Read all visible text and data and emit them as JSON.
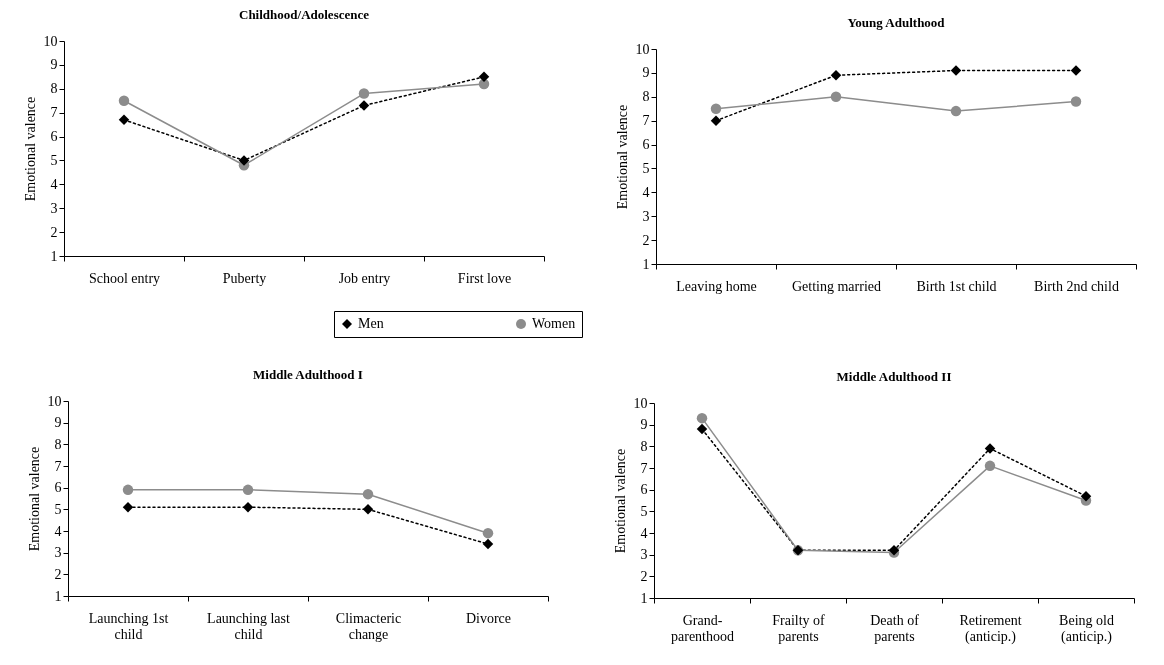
{
  "chart_data": [
    {
      "type": "line",
      "title": "Childhood/Adolescence",
      "ylabel": "Emotional valence",
      "categories": [
        "School entry",
        "Puberty",
        "Job entry",
        "First love"
      ],
      "ylim": [
        1,
        10
      ],
      "yticks": [
        1,
        2,
        3,
        4,
        5,
        6,
        7,
        8,
        9,
        10
      ],
      "legend": "bottom",
      "series": [
        {
          "name": "Men",
          "color": "#000000",
          "marker": "diamond",
          "line_style": "dotted",
          "values": [
            6.7,
            5.0,
            7.3,
            8.5
          ]
        },
        {
          "name": "Women",
          "color": "#8c8c8c",
          "marker": "circle",
          "line_style": "solid",
          "values": [
            7.5,
            4.8,
            7.8,
            8.2
          ]
        }
      ]
    },
    {
      "type": "line",
      "title": "Young Adulthood",
      "ylabel": "Emotional valence",
      "categories": [
        "Leaving home",
        "Getting married",
        "Birth 1st child",
        "Birth 2nd child"
      ],
      "ylim": [
        1,
        10
      ],
      "yticks": [
        1,
        2,
        3,
        4,
        5,
        6,
        7,
        8,
        9,
        10
      ],
      "series": [
        {
          "color": "#000000",
          "marker": "diamond",
          "line_style": "dotted",
          "values": [
            7.0,
            8.9,
            9.1,
            9.1
          ]
        },
        {
          "color": "#8c8c8c",
          "marker": "circle",
          "line_style": "solid",
          "values": [
            7.5,
            8.0,
            7.4,
            7.8
          ]
        }
      ]
    },
    {
      "type": "line",
      "title": "Middle Adulthood I",
      "ylabel": "Emotional valence",
      "categories": [
        "Launching 1st child",
        "Launching last child",
        "Climacteric change",
        "Divorce"
      ],
      "ylim": [
        1,
        10
      ],
      "yticks": [
        1,
        2,
        3,
        4,
        5,
        6,
        7,
        8,
        9,
        10
      ],
      "series": [
        {
          "color": "#000000",
          "marker": "diamond",
          "line_style": "dotted",
          "values": [
            5.1,
            5.1,
            5.0,
            3.4
          ]
        },
        {
          "color": "#8c8c8c",
          "marker": "circle",
          "line_style": "solid",
          "values": [
            5.9,
            5.9,
            5.7,
            3.9
          ]
        }
      ]
    },
    {
      "type": "line",
      "title": "Middle Adulthood II",
      "ylabel": "Emotional valence",
      "categories": [
        "Grand-parenthood",
        "Frailty of parents",
        "Death of parents",
        "Retirement (anticip.)",
        "Being old (anticip.)"
      ],
      "ylim": [
        1,
        10
      ],
      "yticks": [
        1,
        2,
        3,
        4,
        5,
        6,
        7,
        8,
        9,
        10
      ],
      "series": [
        {
          "color": "#000000",
          "marker": "diamond",
          "line_style": "dotted",
          "values": [
            8.8,
            3.2,
            3.2,
            7.9,
            5.7
          ]
        },
        {
          "color": "#8c8c8c",
          "marker": "circle",
          "line_style": "solid",
          "values": [
            9.3,
            3.2,
            3.1,
            7.1,
            5.5
          ]
        }
      ]
    }
  ]
}
